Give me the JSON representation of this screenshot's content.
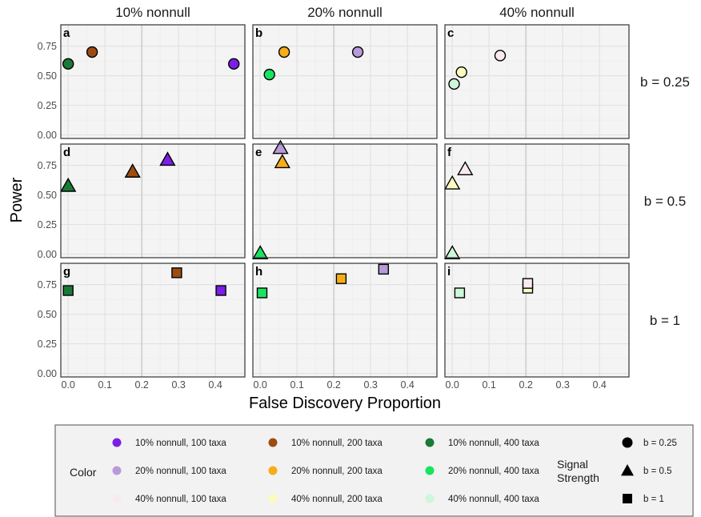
{
  "chart_data": {
    "type": "scatter",
    "xlabel": "False Discovery Proportion",
    "ylabel": "Power",
    "xlim": [
      -0.02,
      0.48
    ],
    "ylim": [
      -0.03,
      0.93
    ],
    "x_ticks": [
      "0.0",
      "0.1",
      "0.2",
      "0.3",
      "0.4"
    ],
    "y_ticks": [
      "0.00",
      "0.25",
      "0.50",
      "0.75"
    ],
    "grid": true,
    "column_strips": [
      "10% nonnull",
      "20% nonnull",
      "40% nonnull"
    ],
    "row_strips": [
      "b = 0.25",
      "b = 0.5",
      "b = 1"
    ],
    "panels": [
      {
        "tag": "a",
        "col": 0,
        "row": 0,
        "shape": "circle",
        "points": [
          {
            "x": 0.0,
            "y": 0.6,
            "color": "#1a7a35"
          },
          {
            "x": 0.065,
            "y": 0.7,
            "color": "#9c4d0f"
          },
          {
            "x": 0.45,
            "y": 0.6,
            "color": "#7b1fe6"
          }
        ]
      },
      {
        "tag": "b",
        "col": 1,
        "row": 0,
        "shape": "circle",
        "points": [
          {
            "x": 0.025,
            "y": 0.51,
            "color": "#19e35f"
          },
          {
            "x": 0.065,
            "y": 0.7,
            "color": "#f5ad1a"
          },
          {
            "x": 0.265,
            "y": 0.7,
            "color": "#b89ad8"
          }
        ]
      },
      {
        "tag": "c",
        "col": 2,
        "row": 0,
        "shape": "circle",
        "points": [
          {
            "x": 0.005,
            "y": 0.43,
            "color": "#cdf7d8"
          },
          {
            "x": 0.025,
            "y": 0.53,
            "color": "#fbfbc0"
          },
          {
            "x": 0.13,
            "y": 0.67,
            "color": "#f8eaf0"
          }
        ]
      },
      {
        "tag": "d",
        "col": 0,
        "row": 1,
        "shape": "triangle",
        "points": [
          {
            "x": 0.0,
            "y": 0.58,
            "color": "#1a7a35"
          },
          {
            "x": 0.175,
            "y": 0.7,
            "color": "#9c4d0f"
          },
          {
            "x": 0.27,
            "y": 0.8,
            "color": "#7b1fe6"
          }
        ]
      },
      {
        "tag": "e",
        "col": 1,
        "row": 1,
        "shape": "triangle",
        "points": [
          {
            "x": 0.0,
            "y": 0.01,
            "color": "#19e35f"
          },
          {
            "x": 0.06,
            "y": 0.78,
            "color": "#f5ad1a"
          },
          {
            "x": 0.055,
            "y": 0.9,
            "color": "#b89ad8"
          }
        ]
      },
      {
        "tag": "f",
        "col": 2,
        "row": 1,
        "shape": "triangle",
        "points": [
          {
            "x": 0.0,
            "y": 0.01,
            "color": "#cdf7d8"
          },
          {
            "x": 0.0,
            "y": 0.6,
            "color": "#fbfbc0"
          },
          {
            "x": 0.035,
            "y": 0.72,
            "color": "#f8eaf0"
          }
        ]
      },
      {
        "tag": "g",
        "col": 0,
        "row": 2,
        "shape": "square",
        "points": [
          {
            "x": 0.0,
            "y": 0.7,
            "color": "#1a7a35"
          },
          {
            "x": 0.295,
            "y": 0.85,
            "color": "#9c4d0f"
          },
          {
            "x": 0.415,
            "y": 0.7,
            "color": "#7b1fe6"
          }
        ]
      },
      {
        "tag": "h",
        "col": 1,
        "row": 2,
        "shape": "square",
        "points": [
          {
            "x": 0.005,
            "y": 0.68,
            "color": "#19e35f"
          },
          {
            "x": 0.22,
            "y": 0.8,
            "color": "#f5ad1a"
          },
          {
            "x": 0.335,
            "y": 0.88,
            "color": "#b89ad8"
          }
        ]
      },
      {
        "tag": "i",
        "col": 2,
        "row": 2,
        "shape": "square",
        "points": [
          {
            "x": 0.02,
            "y": 0.68,
            "color": "#cdf7d8"
          },
          {
            "x": 0.205,
            "y": 0.72,
            "color": "#fbfbc0"
          },
          {
            "x": 0.205,
            "y": 0.76,
            "color": "#f8eaf0"
          }
        ]
      }
    ],
    "legend": {
      "color_title": "Color",
      "color_items": [
        {
          "label": "10% nonnull, 100 taxa",
          "color": "#7b1fe6"
        },
        {
          "label": "10% nonnull, 200 taxa",
          "color": "#9c4d0f"
        },
        {
          "label": "10% nonnull, 400 taxa",
          "color": "#1a7a35"
        },
        {
          "label": "20% nonnull, 100 taxa",
          "color": "#b89ad8"
        },
        {
          "label": "20% nonnull, 200 taxa",
          "color": "#f5ad1a"
        },
        {
          "label": "20% nonnull, 400 taxa",
          "color": "#19e35f"
        },
        {
          "label": "40% nonnull, 100 taxa",
          "color": "#f8eaf0"
        },
        {
          "label": "40% nonnull, 200 taxa",
          "color": "#fbfbc0"
        },
        {
          "label": "40% nonnull, 400 taxa",
          "color": "#cdf7d8"
        }
      ],
      "shape_title_line1": "Signal",
      "shape_title_line2": "Strength",
      "shape_items": [
        {
          "label": "b = 0.25",
          "shape": "circle"
        },
        {
          "label": "b = 0.5",
          "shape": "triangle"
        },
        {
          "label": "b = 1",
          "shape": "square"
        }
      ]
    }
  }
}
